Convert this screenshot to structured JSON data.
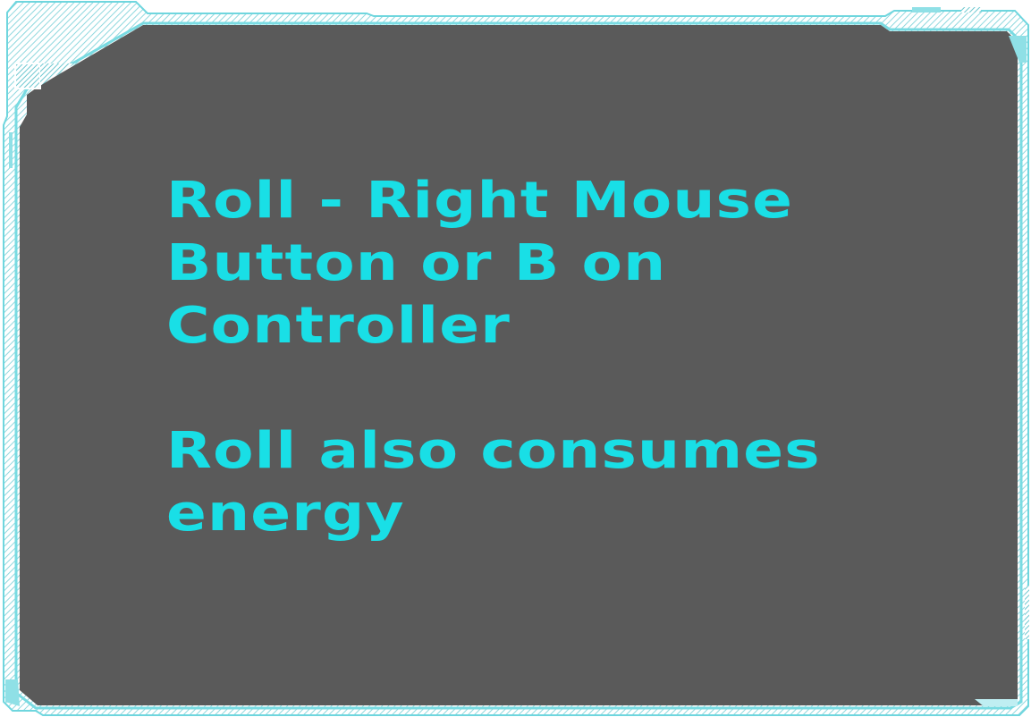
{
  "tutorial_panel": {
    "lines_block_1": "Roll - Right Mouse\nButton or B on\nController",
    "lines_block_2": "Roll also consumes\nenergy"
  },
  "colors": {
    "panel_background": "#5a5a5a",
    "frame_cyan": "#6fd6de",
    "text_cyan": "#19dfe6"
  }
}
